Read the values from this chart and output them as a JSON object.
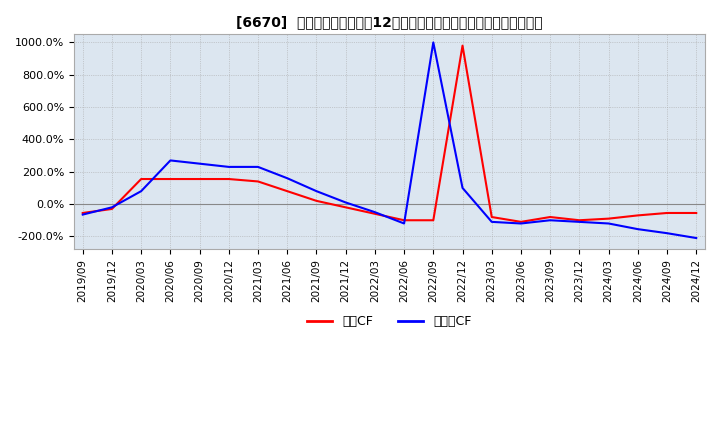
{
  "title": "[6670]  キャッシュフローの12か月移動合計の対前年同期増減率の推移",
  "legend_labels": [
    "営業CF",
    "フリーCF"
  ],
  "line_colors": [
    "#ff0000",
    "#0000ff"
  ],
  "ylim": [
    -280,
    1050
  ],
  "yticks": [
    -200,
    0,
    200,
    400,
    600,
    800,
    1000
  ],
  "background_color": "#ffffff",
  "plot_bg_color": "#dce6f0",
  "grid_color": "#aaaaaa",
  "dates": [
    "2019/09",
    "2019/12",
    "2020/03",
    "2020/06",
    "2020/09",
    "2020/12",
    "2021/03",
    "2021/06",
    "2021/09",
    "2021/12",
    "2022/03",
    "2022/06",
    "2022/09",
    "2022/12",
    "2023/03",
    "2023/06",
    "2023/09",
    "2023/12",
    "2024/03",
    "2024/06",
    "2024/09",
    "2024/12"
  ],
  "operating_cf": [
    -55,
    -30,
    155,
    155,
    155,
    155,
    140,
    80,
    20,
    -20,
    -60,
    -100,
    -100,
    980,
    -80,
    -110,
    -80,
    -100,
    -90,
    -70,
    -55,
    -55
  ],
  "free_cf": [
    -65,
    -20,
    80,
    270,
    250,
    230,
    230,
    160,
    80,
    10,
    -50,
    -120,
    1000,
    100,
    -110,
    -120,
    -100,
    -110,
    -120,
    -155,
    -180,
    -210
  ]
}
